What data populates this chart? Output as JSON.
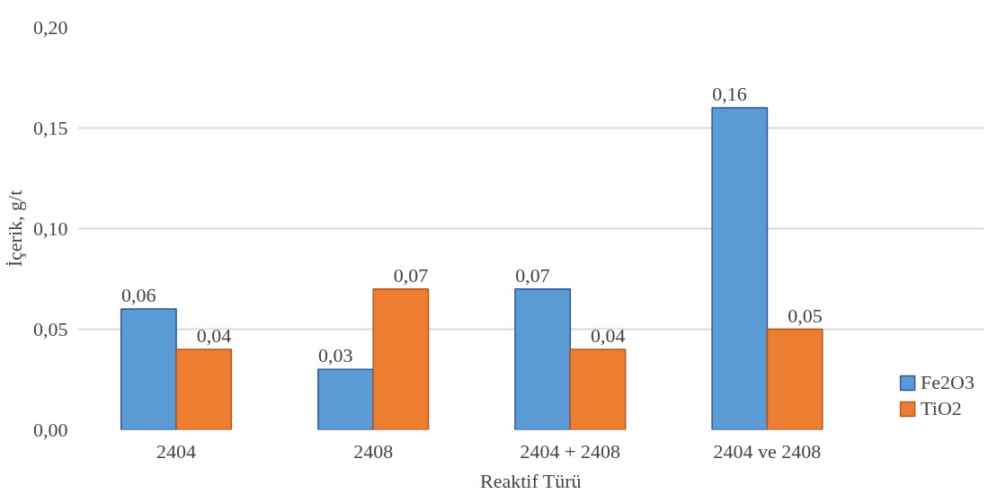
{
  "chart_data": {
    "type": "bar",
    "xlabel": "Reaktif Türü",
    "ylabel": "İçerik, g/t",
    "categories": [
      "2404",
      "2408",
      "2404 + 2408",
      "2404 ve 2408"
    ],
    "series": [
      {
        "name": "Fe2O3",
        "color": "#5b9bd5",
        "values": [
          0.06,
          0.03,
          0.07,
          0.16
        ],
        "value_labels": [
          "0,06",
          "0,03",
          "0,07",
          "0,16"
        ]
      },
      {
        "name": "TiO2",
        "color": "#ed7d31",
        "values": [
          0.04,
          0.07,
          0.04,
          0.05
        ],
        "value_labels": [
          "0,04",
          "0,07",
          "0,04",
          "0,05"
        ]
      }
    ],
    "ylim": [
      0,
      0.2
    ],
    "yticks": [
      {
        "value": 0,
        "label": "0,00"
      },
      {
        "value": 0.05,
        "label": "0,05"
      },
      {
        "value": 0.1,
        "label": "0,10"
      },
      {
        "value": 0.15,
        "label": "0,15"
      },
      {
        "value": 0.2,
        "label": "0,20"
      }
    ],
    "grid": "y",
    "legend": "bottom right"
  }
}
